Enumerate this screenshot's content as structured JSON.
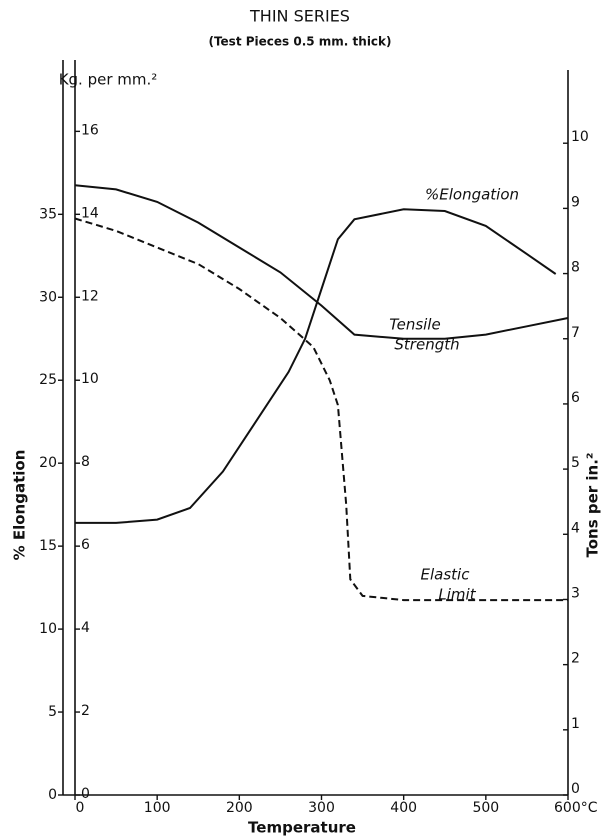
{
  "chart_data": {
    "type": "line",
    "title": "THIN SERIES",
    "subtitle": "(Test Pieces 0.5 mm. thick)",
    "xlabel": "Temperature",
    "ylabel": "% Elongation",
    "y2label": "Kg. per mm.²",
    "y3label": "Tons per in.²",
    "xlim": [
      0,
      600
    ],
    "xticks": [
      0,
      100,
      200,
      300,
      400,
      500,
      {
        "value": 600,
        "label": "600°C"
      }
    ],
    "ylim": [
      0,
      44
    ],
    "yticks": [
      0,
      5,
      10,
      15,
      20,
      25,
      30,
      35
    ],
    "y2lim": [
      0,
      17.6
    ],
    "y2ticks": [
      0,
      2,
      4,
      6,
      8,
      10,
      12,
      14,
      16
    ],
    "y3lim": [
      0,
      11.2
    ],
    "y3ticks": [
      0,
      1,
      2,
      3,
      4,
      5,
      6,
      7,
      8,
      9,
      10
    ],
    "series": [
      {
        "name": "%Elongation",
        "color": "#111111",
        "dash": false,
        "x": [
          0,
          50,
          100,
          140,
          180,
          220,
          260,
          280,
          300,
          320,
          340,
          400,
          450,
          500,
          550,
          585
        ],
        "values": [
          16.4,
          16.4,
          16.6,
          17.3,
          19.5,
          22.5,
          25.5,
          27.5,
          30.5,
          33.5,
          34.7,
          35.3,
          35.2,
          34.3,
          32.6,
          31.4
        ]
      },
      {
        "name": [
          "Tensile",
          "Strength"
        ],
        "color": "#111111",
        "dash": false,
        "axis": "y2",
        "x": [
          0,
          50,
          100,
          150,
          200,
          250,
          300,
          340,
          400,
          450,
          500,
          550,
          600
        ],
        "values": [
          14.7,
          14.6,
          14.3,
          13.8,
          13.2,
          12.6,
          11.8,
          11.1,
          11.0,
          11.0,
          11.1,
          11.3,
          11.5
        ]
      },
      {
        "name": [
          "Elastic",
          "Limit"
        ],
        "color": "#111111",
        "dash": true,
        "axis": "y2",
        "x": [
          0,
          50,
          100,
          150,
          200,
          250,
          290,
          310,
          320,
          330,
          335,
          350,
          400,
          500,
          600
        ],
        "values": [
          13.9,
          13.6,
          13.2,
          12.8,
          12.2,
          11.5,
          10.8,
          10.0,
          9.4,
          7.0,
          5.2,
          4.8,
          4.7,
          4.7,
          4.7
        ]
      }
    ]
  }
}
